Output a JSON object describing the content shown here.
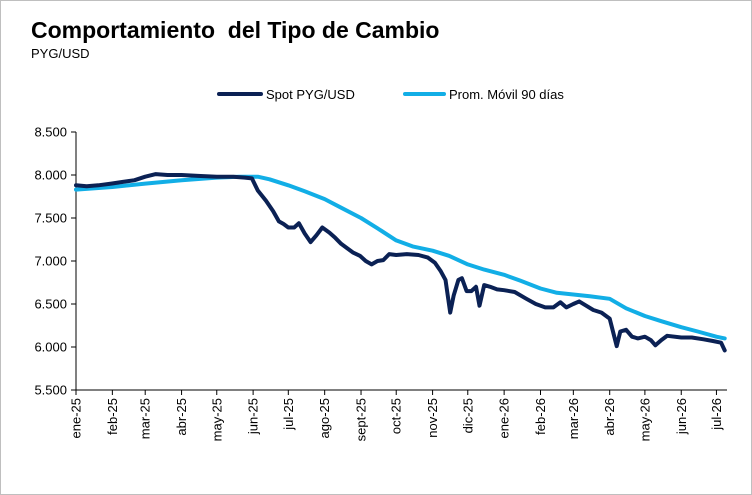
{
  "title": "Comportamiento  del Tipo de Cambio",
  "subtitle": "PYG/USD",
  "colors": {
    "spot": "#0b2154",
    "avg": "#12aee6",
    "axis": "#000000",
    "tick_text": "#000000"
  },
  "chart_data": {
    "type": "line",
    "title": "Comportamiento  del Tipo de Cambio",
    "subtitle": "PYG/USD",
    "xlabel": "",
    "ylabel": "",
    "x_axis_type": "date",
    "x_range": [
      "2025-01-01",
      "2026-07-10"
    ],
    "ylim": [
      5500,
      8500
    ],
    "ytick_values": [
      5500,
      6000,
      6500,
      7000,
      7500,
      8000,
      8500
    ],
    "ytick_labels": [
      "5.500",
      "6.000",
      "6.500",
      "7.000",
      "7.500",
      "8.000",
      "8.500"
    ],
    "xticks": [
      {
        "date": "2025-01-01",
        "label": "ene-25"
      },
      {
        "date": "2025-02-01",
        "label": "feb-25"
      },
      {
        "date": "2025-03-01",
        "label": "mar-25"
      },
      {
        "date": "2025-04-01",
        "label": "abr-25"
      },
      {
        "date": "2025-05-01",
        "label": "may-25"
      },
      {
        "date": "2025-06-01",
        "label": "jun-25"
      },
      {
        "date": "2025-07-01",
        "label": "jul-25"
      },
      {
        "date": "2025-08-01",
        "label": "ago-25"
      },
      {
        "date": "2025-09-01",
        "label": "sept-25"
      },
      {
        "date": "2025-10-01",
        "label": "oct-25"
      },
      {
        "date": "2025-11-01",
        "label": "nov-25"
      },
      {
        "date": "2025-12-01",
        "label": "dic-25"
      },
      {
        "date": "2026-01-01",
        "label": "ene-26"
      },
      {
        "date": "2026-02-01",
        "label": "feb-26"
      },
      {
        "date": "2026-03-01",
        "label": "mar-26"
      },
      {
        "date": "2026-04-01",
        "label": "abr-26"
      },
      {
        "date": "2026-05-01",
        "label": "may-26"
      },
      {
        "date": "2026-06-01",
        "label": "jun-26"
      },
      {
        "date": "2026-07-01",
        "label": "jul-26"
      }
    ],
    "legend": {
      "position": "top",
      "entries": [
        "Spot PYG/USD",
        "Prom. Móvil 90 días"
      ]
    },
    "grid": false,
    "series": [
      {
        "name": "Spot PYG/USD",
        "color": "#0b2154",
        "points": [
          [
            "2025-01-01",
            7880
          ],
          [
            "2025-01-10",
            7870
          ],
          [
            "2025-01-20",
            7880
          ],
          [
            "2025-01-31",
            7900
          ],
          [
            "2025-02-10",
            7920
          ],
          [
            "2025-02-20",
            7940
          ],
          [
            "2025-03-01",
            7980
          ],
          [
            "2025-03-10",
            8010
          ],
          [
            "2025-03-20",
            8000
          ],
          [
            "2025-04-01",
            8000
          ],
          [
            "2025-04-15",
            7990
          ],
          [
            "2025-05-01",
            7980
          ],
          [
            "2025-05-15",
            7980
          ],
          [
            "2025-05-25",
            7970
          ],
          [
            "2025-05-31",
            7960
          ],
          [
            "2025-06-05",
            7820
          ],
          [
            "2025-06-12",
            7700
          ],
          [
            "2025-06-18",
            7580
          ],
          [
            "2025-06-23",
            7460
          ],
          [
            "2025-06-27",
            7430
          ],
          [
            "2025-07-01",
            7390
          ],
          [
            "2025-07-06",
            7390
          ],
          [
            "2025-07-10",
            7440
          ],
          [
            "2025-07-15",
            7320
          ],
          [
            "2025-07-20",
            7220
          ],
          [
            "2025-07-25",
            7300
          ],
          [
            "2025-07-30",
            7390
          ],
          [
            "2025-08-05",
            7330
          ],
          [
            "2025-08-10",
            7270
          ],
          [
            "2025-08-15",
            7200
          ],
          [
            "2025-08-20",
            7150
          ],
          [
            "2025-08-25",
            7100
          ],
          [
            "2025-08-31",
            7060
          ],
          [
            "2025-09-05",
            7000
          ],
          [
            "2025-09-10",
            6960
          ],
          [
            "2025-09-15",
            7000
          ],
          [
            "2025-09-20",
            7010
          ],
          [
            "2025-09-25",
            7080
          ],
          [
            "2025-10-01",
            7070
          ],
          [
            "2025-10-10",
            7080
          ],
          [
            "2025-10-20",
            7070
          ],
          [
            "2025-10-28",
            7040
          ],
          [
            "2025-11-03",
            6980
          ],
          [
            "2025-11-08",
            6880
          ],
          [
            "2025-11-12",
            6780
          ],
          [
            "2025-11-16",
            6400
          ],
          [
            "2025-11-19",
            6600
          ],
          [
            "2025-11-23",
            6780
          ],
          [
            "2025-11-26",
            6800
          ],
          [
            "2025-11-30",
            6650
          ],
          [
            "2025-12-04",
            6650
          ],
          [
            "2025-12-08",
            6700
          ],
          [
            "2025-12-11",
            6480
          ],
          [
            "2025-12-15",
            6720
          ],
          [
            "2025-12-20",
            6700
          ],
          [
            "2025-12-26",
            6670
          ],
          [
            "2026-01-01",
            6660
          ],
          [
            "2026-01-10",
            6640
          ],
          [
            "2026-01-20",
            6560
          ],
          [
            "2026-01-28",
            6500
          ],
          [
            "2026-02-05",
            6460
          ],
          [
            "2026-02-12",
            6460
          ],
          [
            "2026-02-18",
            6520
          ],
          [
            "2026-02-23",
            6460
          ],
          [
            "2026-03-01",
            6500
          ],
          [
            "2026-03-06",
            6530
          ],
          [
            "2026-03-12",
            6480
          ],
          [
            "2026-03-18",
            6430
          ],
          [
            "2026-03-25",
            6400
          ],
          [
            "2026-04-01",
            6330
          ],
          [
            "2026-04-04",
            6170
          ],
          [
            "2026-04-07",
            6010
          ],
          [
            "2026-04-10",
            6180
          ],
          [
            "2026-04-15",
            6200
          ],
          [
            "2026-04-20",
            6120
          ],
          [
            "2026-04-25",
            6100
          ],
          [
            "2026-05-01",
            6120
          ],
          [
            "2026-05-06",
            6080
          ],
          [
            "2026-05-10",
            6020
          ],
          [
            "2026-05-15",
            6080
          ],
          [
            "2026-05-20",
            6130
          ],
          [
            "2026-06-01",
            6110
          ],
          [
            "2026-06-10",
            6110
          ],
          [
            "2026-06-20",
            6090
          ],
          [
            "2026-06-28",
            6070
          ],
          [
            "2026-07-05",
            6050
          ],
          [
            "2026-07-08",
            5960
          ]
        ]
      },
      {
        "name": "Prom. Móvil 90 días",
        "color": "#12aee6",
        "points": [
          [
            "2025-01-01",
            7830
          ],
          [
            "2025-02-01",
            7860
          ],
          [
            "2025-03-01",
            7900
          ],
          [
            "2025-04-01",
            7940
          ],
          [
            "2025-05-01",
            7970
          ],
          [
            "2025-05-20",
            7980
          ],
          [
            "2025-06-05",
            7980
          ],
          [
            "2025-06-15",
            7950
          ],
          [
            "2025-07-01",
            7880
          ],
          [
            "2025-07-15",
            7810
          ],
          [
            "2025-08-01",
            7720
          ],
          [
            "2025-08-15",
            7620
          ],
          [
            "2025-09-01",
            7500
          ],
          [
            "2025-09-15",
            7380
          ],
          [
            "2025-10-01",
            7240
          ],
          [
            "2025-10-15",
            7170
          ],
          [
            "2025-11-01",
            7120
          ],
          [
            "2025-11-15",
            7060
          ],
          [
            "2025-12-01",
            6960
          ],
          [
            "2025-12-15",
            6900
          ],
          [
            "2026-01-01",
            6840
          ],
          [
            "2026-01-15",
            6770
          ],
          [
            "2026-02-01",
            6680
          ],
          [
            "2026-02-15",
            6630
          ],
          [
            "2026-03-01",
            6610
          ],
          [
            "2026-03-15",
            6590
          ],
          [
            "2026-04-01",
            6560
          ],
          [
            "2026-04-15",
            6450
          ],
          [
            "2026-05-01",
            6360
          ],
          [
            "2026-05-15",
            6300
          ],
          [
            "2026-06-01",
            6230
          ],
          [
            "2026-06-15",
            6180
          ],
          [
            "2026-07-01",
            6120
          ],
          [
            "2026-07-08",
            6100
          ]
        ]
      }
    ]
  }
}
